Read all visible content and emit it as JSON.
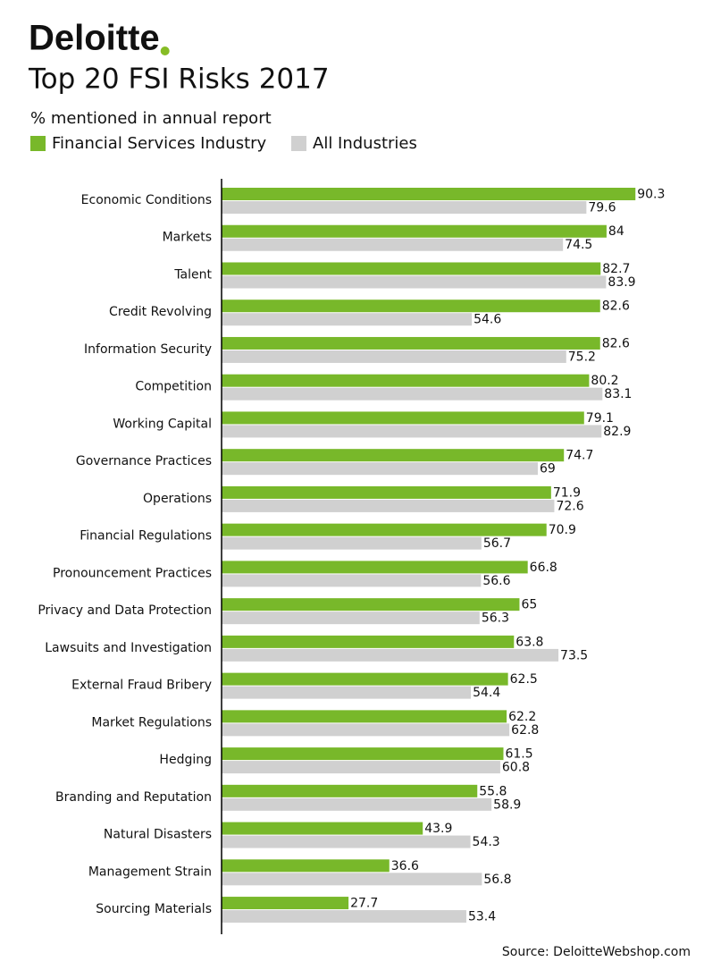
{
  "logo": "Deloitte",
  "chart_data": {
    "type": "hbar",
    "title": "Top 20 FSI Risks 2017",
    "subtitle": "% mentioned in annual report",
    "source": "Source: DeloitteWebshop.com",
    "categories": [
      "Economic Conditions",
      "Markets",
      "Talent",
      "Credit Revolving",
      "Information Security",
      "Competition",
      "Working Capital",
      "Governance Practices",
      "Operations",
      "Financial Regulations",
      "Pronouncement Practices",
      "Privacy and Data Protection",
      "Lawsuits and Investigation",
      "External Fraud Bribery",
      "Market Regulations",
      "Hedging",
      "Branding and Reputation",
      "Natural Disasters",
      "Management Strain",
      "Sourcing Materials"
    ],
    "series": [
      {
        "name": "Financial Services Industry",
        "color": "#78b82a",
        "values": [
          90.3,
          84,
          82.7,
          82.6,
          82.6,
          80.2,
          79.1,
          74.7,
          71.9,
          70.9,
          66.8,
          65,
          63.8,
          62.5,
          62.2,
          61.5,
          55.8,
          43.9,
          36.6,
          27.7
        ]
      },
      {
        "name": "All Industries",
        "color": "#d0d0d0",
        "values": [
          79.6,
          74.5,
          83.9,
          54.6,
          75.2,
          83.1,
          82.9,
          69,
          72.6,
          56.7,
          56.6,
          56.3,
          73.5,
          54.4,
          62.8,
          60.8,
          58.9,
          54.3,
          56.8,
          53.4
        ]
      }
    ],
    "xlim": [
      0,
      100
    ]
  }
}
